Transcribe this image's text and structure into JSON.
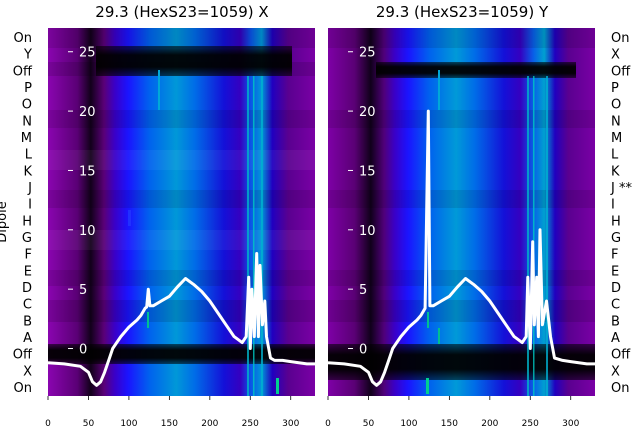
{
  "chart_data": [
    {
      "type": "heatmap",
      "title": "29.3 (HexS23=1059) X",
      "ylabel": "Dipole",
      "dipole_labels_left": [
        "On",
        "Y",
        "Off",
        "P",
        "O",
        "N",
        "M",
        "L",
        "K",
        "J",
        "I",
        "H",
        "G",
        "F",
        "E",
        "D",
        "C",
        "B",
        "A",
        "Off",
        "X",
        "On"
      ],
      "xlim": [
        0,
        330
      ],
      "xticks": [
        0,
        50,
        100,
        150,
        200,
        250,
        300
      ],
      "overlay_ylim": [
        -4,
        27
      ],
      "overlay_yticks": [
        0,
        5,
        10,
        15,
        20,
        25
      ],
      "overlay_trace": {
        "color": "#ffffff",
        "x": [
          0,
          20,
          40,
          50,
          55,
          60,
          65,
          70,
          75,
          80,
          90,
          100,
          110,
          115,
          120,
          122,
          124,
          126,
          130,
          140,
          150,
          160,
          170,
          180,
          190,
          200,
          210,
          220,
          230,
          240,
          245,
          248,
          250,
          252,
          255,
          258,
          260,
          262,
          265,
          268,
          270,
          275,
          280,
          290,
          300,
          320,
          330
        ],
        "y": [
          -1.2,
          -1.3,
          -1.5,
          -2,
          -2.8,
          -3.1,
          -2.8,
          -2,
          -1,
          0,
          1,
          1.8,
          2.4,
          2.8,
          3.4,
          3.5,
          5,
          3.6,
          3.6,
          4,
          4.4,
          5.2,
          5.9,
          5.4,
          4.8,
          4,
          3,
          2,
          1,
          0.5,
          1,
          6,
          0,
          5,
          1,
          8,
          1,
          7,
          2,
          4,
          1,
          -0.8,
          -1,
          -1,
          -1.1,
          -1.3,
          -1.3
        ]
      }
    },
    {
      "type": "heatmap",
      "title": "29.3 (HexS23=1059) Y",
      "ylabel": "",
      "dipole_labels_right": [
        "On",
        "X",
        "Off",
        "P",
        "O",
        "N",
        "M",
        "L",
        "K",
        "J **",
        "I",
        "H",
        "G",
        "F",
        "E",
        "D",
        "C",
        "B",
        "A",
        "Off",
        "X",
        "On"
      ],
      "xlim": [
        0,
        330
      ],
      "xticks": [
        0,
        50,
        100,
        150,
        200,
        250,
        300
      ],
      "overlay_ylim": [
        -4,
        27
      ],
      "overlay_yticks": [
        0,
        5,
        10,
        15,
        20,
        25
      ],
      "overlay_trace": {
        "color": "#ffffff",
        "x": [
          0,
          20,
          40,
          50,
          55,
          60,
          65,
          70,
          75,
          80,
          90,
          100,
          110,
          115,
          120,
          124,
          126,
          130,
          140,
          150,
          160,
          170,
          180,
          190,
          200,
          210,
          220,
          230,
          240,
          245,
          247,
          250,
          253,
          255,
          258,
          260,
          262,
          265,
          270,
          275,
          280,
          290,
          300,
          320,
          330
        ],
        "y": [
          -1.2,
          -1.3,
          -1.5,
          -2,
          -2.8,
          -3.1,
          -2.8,
          -2,
          -1,
          0,
          1,
          1.8,
          2.4,
          2.8,
          3.4,
          20,
          3.6,
          3.6,
          4,
          4.4,
          5.2,
          5.9,
          5.4,
          4.8,
          4,
          3,
          2,
          1,
          0.5,
          1,
          6,
          0,
          9,
          2,
          6,
          1,
          10,
          2,
          4,
          1,
          -0.8,
          -1,
          -1.1,
          -1.3,
          -1.3
        ]
      }
    }
  ]
}
